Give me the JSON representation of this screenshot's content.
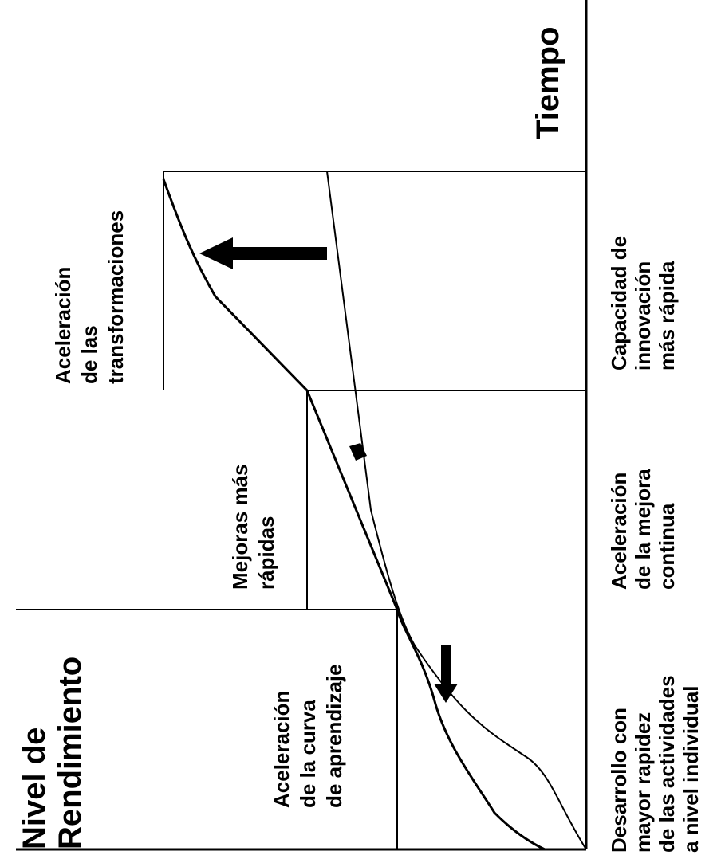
{
  "y_axis_label": [
    "Nivel de",
    "Rendimiento"
  ],
  "x_axis_label": "Tiempo",
  "stage_labels": [
    [
      "Aceleración",
      "de la curva",
      "de aprendizaje"
    ],
    [
      "Mejoras más",
      "rápidas"
    ],
    [
      "Aceleración",
      "de las",
      "transformaciones"
    ]
  ],
  "bottom_labels": [
    [
      "Desarrollo con",
      "mayor rapidez",
      "de las actividades",
      "a nivel individual"
    ],
    [
      "Aceleración",
      "de la mejora",
      "continua"
    ],
    [
      "Capacidad de",
      "innovación",
      "más rápida"
    ]
  ],
  "colors": {
    "ink": "#000000",
    "background": "#ffffff"
  }
}
